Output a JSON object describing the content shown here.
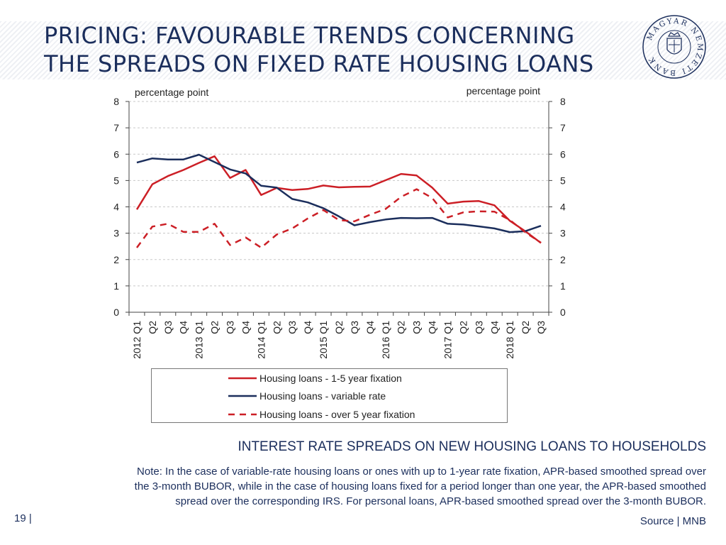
{
  "slide": {
    "title_line1": "PRICING: FAVOURABLE TRENDS CONCERNING",
    "title_line2": "THE SPREADS ON FIXED RATE HOUSING LOANS",
    "subtitle": "INTEREST RATE SPREADS ON NEW HOUSING LOANS TO HOUSEHOLDS",
    "note_line1": "Note: In the case of variable-rate housing loans or ones with up to 1-year rate fixation, APR-based smoothed spread over",
    "note_line2": "the 3-month BUBOR, while in the case of housing loans fixed for a period longer than one year, the APR-based smoothed",
    "note_line3": "spread over the corresponding IRS. For personal loans, APR-based smoothed spread over the 3-month BUBOR.",
    "page_number": "19 |",
    "source": "Source | MNB"
  },
  "logo": {
    "text": "MAGYAR NEMZETI BANK",
    "color": "#1b2e5c"
  },
  "chart_data": {
    "type": "line",
    "ylabel_left": "percentage  point",
    "ylabel_right": "percentage  point",
    "ylim": [
      0,
      8
    ],
    "yticks": [
      0,
      1,
      2,
      3,
      4,
      5,
      6,
      7,
      8
    ],
    "grid": true,
    "categories": [
      "2012 Q1",
      "Q2",
      "Q3",
      "Q4",
      "2013 Q1",
      "Q2",
      "Q3",
      "Q4",
      "2014 Q1",
      "Q2",
      "Q3",
      "Q4",
      "2015 Q1",
      "Q2",
      "Q3",
      "Q4",
      "2016 Q1",
      "Q2",
      "Q3",
      "Q4",
      "2017 Q1",
      "Q2",
      "Q3",
      "Q4",
      "2018 Q1",
      "Q2",
      "Q3"
    ],
    "series": [
      {
        "name": "Housing loans - 1-5 year fixation",
        "color": "#cc1f26",
        "style": "solid",
        "values": [
          3.9,
          4.86,
          5.17,
          5.4,
          5.67,
          5.92,
          5.1,
          5.4,
          4.45,
          4.72,
          4.64,
          4.68,
          4.81,
          4.74,
          4.76,
          4.77,
          5.01,
          5.25,
          5.19,
          4.73,
          4.12,
          4.2,
          4.22,
          4.06,
          3.47,
          3.07,
          2.63
        ]
      },
      {
        "name": "Housing loans - variable rate",
        "color": "#1b2e5c",
        "style": "solid",
        "values": [
          5.68,
          5.84,
          5.8,
          5.8,
          5.98,
          5.7,
          5.42,
          5.27,
          4.8,
          4.73,
          4.3,
          4.17,
          3.95,
          3.64,
          3.3,
          3.42,
          3.52,
          3.58,
          3.57,
          3.58,
          3.36,
          3.33,
          3.26,
          3.18,
          3.04,
          3.08,
          3.28
        ]
      },
      {
        "name": "Housing loans - over 5 year fixation",
        "color": "#cc1f26",
        "style": "dashed",
        "values": [
          2.45,
          3.25,
          3.36,
          3.05,
          3.05,
          3.36,
          2.55,
          2.84,
          2.45,
          2.95,
          3.18,
          3.56,
          3.88,
          3.5,
          3.45,
          3.7,
          3.92,
          4.38,
          4.67,
          4.34,
          3.6,
          3.79,
          3.83,
          3.82,
          3.5,
          3.03,
          2.64
        ]
      }
    ]
  }
}
